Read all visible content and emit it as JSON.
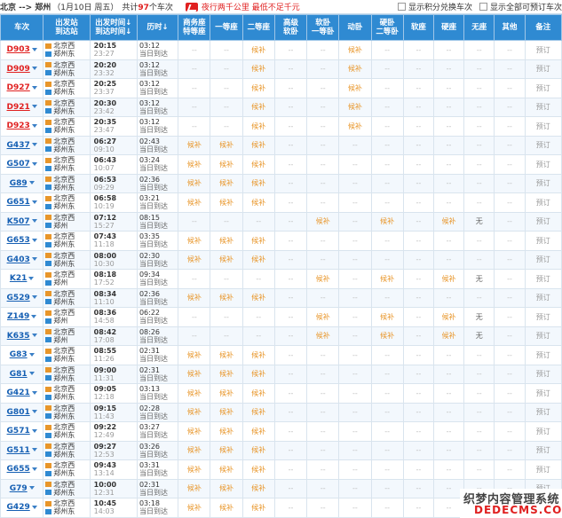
{
  "header": {
    "route": "北京 --> 郑州",
    "date": "（1月10日 周五）",
    "count_prefix": "共计",
    "count_num": "97",
    "count_suffix": "个车次",
    "ad_text": "夜行两千公里 最低不足千元",
    "opt1": "显示积分兑换车次",
    "opt2": "显示全部可预订车次"
  },
  "columns": [
    "车次",
    "出发站\n到达站",
    "出发时间↓\n到达时间↓",
    "历时↓",
    "商务座\n特等座",
    "一等座",
    "二等座",
    "高级\n软卧",
    "软卧\n一等卧",
    "动卧",
    "硬卧\n二等卧",
    "软座",
    "硬座",
    "无座",
    "其他",
    "备注"
  ],
  "rows": [
    {
      "train": "D903",
      "red": true,
      "from": "北京西",
      "to": "郑州东",
      "dep": "20:15",
      "arr": "23:27",
      "dur": "03:12",
      "day": "当日到达",
      "c": [
        "--",
        "--",
        "候补",
        "--",
        "--",
        "候补",
        "--",
        "--",
        "--",
        "--",
        "--",
        "预订"
      ]
    },
    {
      "train": "D909",
      "red": true,
      "from": "北京西",
      "to": "郑州东",
      "dep": "20:20",
      "arr": "23:32",
      "dur": "03:12",
      "day": "当日到达",
      "c": [
        "--",
        "--",
        "候补",
        "--",
        "--",
        "候补",
        "--",
        "--",
        "--",
        "--",
        "--",
        "预订"
      ]
    },
    {
      "train": "D927",
      "red": true,
      "from": "北京西",
      "to": "郑州东",
      "dep": "20:25",
      "arr": "23:37",
      "dur": "03:12",
      "day": "当日到达",
      "c": [
        "--",
        "--",
        "候补",
        "--",
        "--",
        "候补",
        "--",
        "--",
        "--",
        "--",
        "--",
        "预订"
      ]
    },
    {
      "train": "D921",
      "red": true,
      "from": "北京西",
      "to": "郑州东",
      "dep": "20:30",
      "arr": "23:42",
      "dur": "03:12",
      "day": "当日到达",
      "c": [
        "--",
        "--",
        "候补",
        "--",
        "--",
        "候补",
        "--",
        "--",
        "--",
        "--",
        "--",
        "预订"
      ]
    },
    {
      "train": "D923",
      "red": true,
      "from": "北京西",
      "to": "郑州东",
      "dep": "20:35",
      "arr": "23:47",
      "dur": "03:12",
      "day": "当日到达",
      "c": [
        "--",
        "--",
        "候补",
        "--",
        "--",
        "候补",
        "--",
        "--",
        "--",
        "--",
        "--",
        "预订"
      ]
    },
    {
      "train": "G437",
      "red": false,
      "from": "北京西",
      "to": "郑州东",
      "dep": "06:27",
      "arr": "09:10",
      "dur": "02:43",
      "day": "当日到达",
      "c": [
        "候补",
        "候补",
        "候补",
        "--",
        "--",
        "--",
        "--",
        "--",
        "--",
        "--",
        "--",
        "预订"
      ]
    },
    {
      "train": "G507",
      "red": false,
      "from": "北京西",
      "to": "郑州东",
      "dep": "06:43",
      "arr": "10:07",
      "dur": "03:24",
      "day": "当日到达",
      "c": [
        "候补",
        "候补",
        "候补",
        "--",
        "--",
        "--",
        "--",
        "--",
        "--",
        "--",
        "--",
        "预订"
      ]
    },
    {
      "train": "G89",
      "red": false,
      "from": "北京西",
      "to": "郑州东",
      "dep": "06:53",
      "arr": "09:29",
      "dur": "02:36",
      "day": "当日到达",
      "c": [
        "候补",
        "候补",
        "候补",
        "--",
        "--",
        "--",
        "--",
        "--",
        "--",
        "--",
        "--",
        "预订"
      ]
    },
    {
      "train": "G651",
      "red": false,
      "from": "北京西",
      "to": "郑州东",
      "dep": "06:58",
      "arr": "10:19",
      "dur": "03:21",
      "day": "当日到达",
      "c": [
        "候补",
        "候补",
        "候补",
        "--",
        "--",
        "--",
        "--",
        "--",
        "--",
        "--",
        "--",
        "预订"
      ]
    },
    {
      "train": "K507",
      "red": false,
      "from": "北京西",
      "to": "郑州",
      "dep": "07:12",
      "arr": "15:27",
      "dur": "08:15",
      "day": "当日到达",
      "c": [
        "--",
        "--",
        "--",
        "--",
        "候补",
        "--",
        "候补",
        "--",
        "候补",
        "无",
        "--",
        "预订"
      ]
    },
    {
      "train": "G653",
      "red": false,
      "from": "北京西",
      "to": "郑州东",
      "dep": "07:43",
      "arr": "11:18",
      "dur": "03:35",
      "day": "当日到达",
      "c": [
        "候补",
        "候补",
        "候补",
        "--",
        "--",
        "--",
        "--",
        "--",
        "--",
        "--",
        "--",
        "预订"
      ]
    },
    {
      "train": "G403",
      "red": false,
      "from": "北京西",
      "to": "郑州东",
      "dep": "08:00",
      "arr": "10:30",
      "dur": "02:30",
      "day": "当日到达",
      "c": [
        "候补",
        "候补",
        "候补",
        "--",
        "--",
        "--",
        "--",
        "--",
        "--",
        "--",
        "--",
        "预订"
      ]
    },
    {
      "train": "K21",
      "red": false,
      "from": "北京西",
      "to": "郑州",
      "dep": "08:18",
      "arr": "17:52",
      "dur": "09:34",
      "day": "当日到达",
      "c": [
        "--",
        "--",
        "--",
        "--",
        "候补",
        "--",
        "候补",
        "--",
        "候补",
        "无",
        "--",
        "预订"
      ]
    },
    {
      "train": "G529",
      "red": false,
      "from": "北京西",
      "to": "郑州东",
      "dep": "08:34",
      "arr": "11:10",
      "dur": "02:36",
      "day": "当日到达",
      "c": [
        "候补",
        "候补",
        "候补",
        "--",
        "--",
        "--",
        "--",
        "--",
        "--",
        "--",
        "--",
        "预订"
      ]
    },
    {
      "train": "Z149",
      "red": false,
      "from": "北京西",
      "to": "郑州",
      "dep": "08:36",
      "arr": "14:58",
      "dur": "06:22",
      "day": "当日到达",
      "c": [
        "--",
        "--",
        "--",
        "--",
        "候补",
        "--",
        "候补",
        "--",
        "候补",
        "无",
        "--",
        "预订"
      ]
    },
    {
      "train": "K635",
      "red": false,
      "from": "北京西",
      "to": "郑州",
      "dep": "08:42",
      "arr": "17:08",
      "dur": "08:26",
      "day": "当日到达",
      "c": [
        "--",
        "--",
        "--",
        "--",
        "候补",
        "--",
        "候补",
        "--",
        "候补",
        "无",
        "--",
        "预订"
      ]
    },
    {
      "train": "G83",
      "red": false,
      "from": "北京西",
      "to": "郑州东",
      "dep": "08:55",
      "arr": "11:26",
      "dur": "02:31",
      "day": "当日到达",
      "c": [
        "候补",
        "候补",
        "候补",
        "--",
        "--",
        "--",
        "--",
        "--",
        "--",
        "--",
        "--",
        "预订"
      ]
    },
    {
      "train": "G81",
      "red": false,
      "from": "北京西",
      "to": "郑州东",
      "dep": "09:00",
      "arr": "11:31",
      "dur": "02:31",
      "day": "当日到达",
      "c": [
        "候补",
        "候补",
        "候补",
        "--",
        "--",
        "--",
        "--",
        "--",
        "--",
        "--",
        "--",
        "预订"
      ]
    },
    {
      "train": "G421",
      "red": false,
      "from": "北京西",
      "to": "郑州东",
      "dep": "09:05",
      "arr": "12:18",
      "dur": "03:13",
      "day": "当日到达",
      "c": [
        "候补",
        "候补",
        "候补",
        "--",
        "--",
        "--",
        "--",
        "--",
        "--",
        "--",
        "--",
        "预订"
      ]
    },
    {
      "train": "G801",
      "red": false,
      "from": "北京西",
      "to": "郑州东",
      "dep": "09:15",
      "arr": "11:43",
      "dur": "02:28",
      "day": "当日到达",
      "c": [
        "候补",
        "候补",
        "候补",
        "--",
        "--",
        "--",
        "--",
        "--",
        "--",
        "--",
        "--",
        "预订"
      ]
    },
    {
      "train": "G571",
      "red": false,
      "from": "北京西",
      "to": "郑州东",
      "dep": "09:22",
      "arr": "12:49",
      "dur": "03:27",
      "day": "当日到达",
      "c": [
        "候补",
        "候补",
        "候补",
        "--",
        "--",
        "--",
        "--",
        "--",
        "--",
        "--",
        "--",
        "预订"
      ]
    },
    {
      "train": "G511",
      "red": false,
      "from": "北京西",
      "to": "郑州东",
      "dep": "09:27",
      "arr": "12:53",
      "dur": "03:26",
      "day": "当日到达",
      "c": [
        "候补",
        "候补",
        "候补",
        "--",
        "--",
        "--",
        "--",
        "--",
        "--",
        "--",
        "--",
        "预订"
      ]
    },
    {
      "train": "G655",
      "red": false,
      "from": "北京西",
      "to": "郑州东",
      "dep": "09:43",
      "arr": "13:14",
      "dur": "03:31",
      "day": "当日到达",
      "c": [
        "候补",
        "候补",
        "候补",
        "--",
        "--",
        "--",
        "--",
        "--",
        "--",
        "--",
        "--",
        "预订"
      ]
    },
    {
      "train": "G79",
      "red": false,
      "from": "北京西",
      "to": "郑州东",
      "dep": "10:00",
      "arr": "12:31",
      "dur": "02:31",
      "day": "当日到达",
      "c": [
        "候补",
        "候补",
        "候补",
        "--",
        "--",
        "--",
        "--",
        "--",
        "--",
        "--",
        "--",
        "预订"
      ]
    },
    {
      "train": "G429",
      "red": false,
      "from": "北京西",
      "to": "郑州东",
      "dep": "10:45",
      "arr": "14:03",
      "dur": "03:18",
      "day": "当日到达",
      "c": [
        "候补",
        "候补",
        "候补",
        "--",
        "--",
        "--",
        "--",
        "--",
        "--",
        "--",
        "--",
        "预订"
      ]
    }
  ],
  "watermark": {
    "line1": "织梦内容管理系统",
    "line2": "DEDECMS.COM"
  }
}
